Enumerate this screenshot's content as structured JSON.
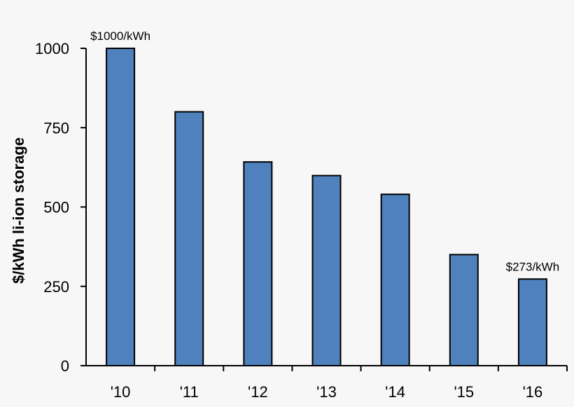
{
  "chart_data": {
    "type": "bar",
    "categories": [
      "'10",
      "'11",
      "'12",
      "'13",
      "'14",
      "'15",
      "'16"
    ],
    "values": [
      1000,
      800,
      642,
      599,
      540,
      350,
      273
    ],
    "title": "",
    "xlabel": "",
    "ylabel": "$/kWh li-ion storage",
    "ylim": [
      0,
      1000
    ],
    "yticks": [
      0,
      250,
      500,
      750,
      1000
    ],
    "grid": false,
    "bar_color": "#4f81bd",
    "data_labels": [
      {
        "category_index": 0,
        "text": "$1000/kWh"
      },
      {
        "category_index": 6,
        "text": "$273/kWh"
      }
    ]
  }
}
